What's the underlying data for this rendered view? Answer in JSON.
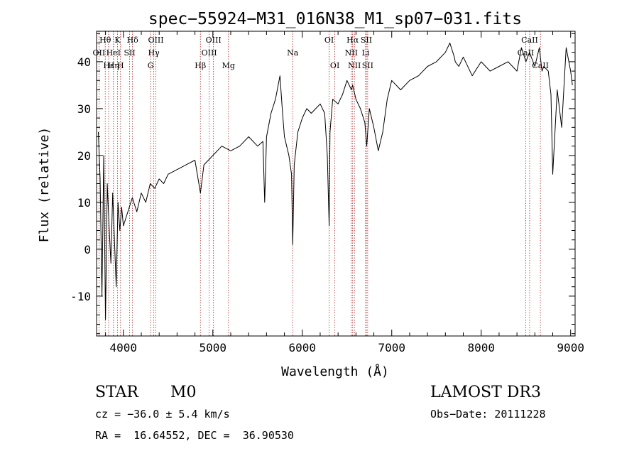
{
  "chart_data": {
    "type": "line",
    "title": "spec−55924−M31_016N38_M1_sp07−031.fits",
    "xlabel": "Wavelength (Å)",
    "ylabel": "Flux (relative)",
    "xlim": [
      3700,
      9050
    ],
    "ylim": [
      -18.5,
      46.5
    ],
    "xticks": [
      4000,
      5000,
      6000,
      7000,
      8000,
      9000
    ],
    "yticks": [
      -10,
      0,
      10,
      20,
      30,
      40
    ],
    "series": [
      {
        "name": "flux",
        "x": [
          3720,
          3740,
          3760,
          3780,
          3800,
          3820,
          3840,
          3860,
          3880,
          3900,
          3920,
          3940,
          3960,
          3980,
          4000,
          4050,
          4100,
          4150,
          4200,
          4250,
          4300,
          4350,
          4400,
          4450,
          4500,
          4600,
          4700,
          4800,
          4861,
          4900,
          5000,
          5100,
          5200,
          5300,
          5400,
          5500,
          5560,
          5580,
          5600,
          5650,
          5700,
          5750,
          5780,
          5800,
          5850,
          5880,
          5893,
          5910,
          5950,
          6000,
          6050,
          6100,
          6150,
          6200,
          6250,
          6280,
          6300,
          6310,
          6340,
          6400,
          6450,
          6500,
          6550,
          6563,
          6600,
          6650,
          6700,
          6720,
          6750,
          6800,
          6850,
          6900,
          6950,
          7000,
          7100,
          7200,
          7300,
          7400,
          7500,
          7600,
          7650,
          7700,
          7710,
          7750,
          7800,
          7900,
          8000,
          8100,
          8200,
          8300,
          8400,
          8450,
          8500,
          8540,
          8600,
          8650,
          8680,
          8700,
          8750,
          8780,
          8800,
          8850,
          8900,
          8950,
          8980,
          9000,
          9020
        ],
        "y": [
          25,
          15,
          -10,
          20,
          -15,
          14,
          5,
          -3,
          12,
          2,
          -8,
          10,
          4,
          9,
          5,
          8,
          11,
          8,
          12,
          10,
          14,
          13,
          15,
          14,
          16,
          17,
          18,
          19,
          12,
          18,
          20,
          22,
          21,
          22,
          24,
          22,
          23,
          10,
          24,
          29,
          32,
          37,
          29,
          24,
          20,
          16,
          1,
          18,
          25,
          28,
          30,
          29,
          30,
          31,
          29,
          20,
          5,
          25,
          32,
          31,
          33,
          36,
          34,
          35,
          32,
          30,
          27,
          22,
          30,
          26,
          21,
          25,
          32,
          36,
          34,
          36,
          37,
          39,
          40,
          42,
          44,
          41,
          40,
          39,
          41,
          37,
          40,
          38,
          39,
          40,
          38,
          43,
          40,
          42,
          39,
          43,
          38,
          39,
          38,
          33,
          16,
          34,
          26,
          43,
          40,
          38,
          35
        ]
      }
    ],
    "lines": [
      {
        "label": "Hθ",
        "wavelength": 3797,
        "row": 0
      },
      {
        "label": "K",
        "wavelength": 3934,
        "row": 0
      },
      {
        "label": "Hδ",
        "wavelength": 4102,
        "row": 0
      },
      {
        "label": "OIII",
        "wavelength": 4363,
        "row": 0
      },
      {
        "label": "OIII",
        "wavelength": 5007,
        "row": 0
      },
      {
        "label": "OI",
        "wavelength": 6300,
        "row": 0
      },
      {
        "label": "Hα",
        "wavelength": 6563,
        "row": 0
      },
      {
        "label": "SII",
        "wavelength": 6716,
        "row": 0
      },
      {
        "label": "CaII",
        "wavelength": 8542,
        "row": 0
      },
      {
        "label": "OII",
        "wavelength": 3727,
        "row": 1
      },
      {
        "label": "HeI",
        "wavelength": 3889,
        "row": 1
      },
      {
        "label": "SII",
        "wavelength": 4070,
        "row": 1
      },
      {
        "label": "Hγ",
        "wavelength": 4340,
        "row": 1
      },
      {
        "label": "OIII",
        "wavelength": 4959,
        "row": 1
      },
      {
        "label": "Na",
        "wavelength": 5893,
        "row": 1
      },
      {
        "label": "NII",
        "wavelength": 6548,
        "row": 1
      },
      {
        "label": "Li",
        "wavelength": 6708,
        "row": 1
      },
      {
        "label": "CaII",
        "wavelength": 8498,
        "row": 1
      },
      {
        "label": "Hε",
        "wavelength": 3835,
        "row": 2
      },
      {
        "label": "Hη",
        "wavelength": 3889,
        "row": 2
      },
      {
        "label": "H",
        "wavelength": 3968,
        "row": 2
      },
      {
        "label": "G",
        "wavelength": 4304,
        "row": 2
      },
      {
        "label": "Hβ",
        "wavelength": 4861,
        "row": 2
      },
      {
        "label": "Mg",
        "wavelength": 5175,
        "row": 2
      },
      {
        "label": "OI",
        "wavelength": 6364,
        "row": 2
      },
      {
        "label": "NII",
        "wavelength": 6583,
        "row": 2
      },
      {
        "label": "SII",
        "wavelength": 6731,
        "row": 2
      },
      {
        "label": "CaII",
        "wavelength": 8662,
        "row": 2
      }
    ]
  },
  "info": {
    "class": "STAR",
    "subclass": "M0",
    "survey": "LAMOST DR3",
    "cz": "cz = −36.0 ± 5.4 km/s",
    "obs_date": "Obs−Date: 20111228",
    "coords": "RA =  16.64552, DEC =  36.90530"
  },
  "colors": {
    "axis": "#000000",
    "spectrum": "#000000",
    "line_marker": "#b22222"
  }
}
